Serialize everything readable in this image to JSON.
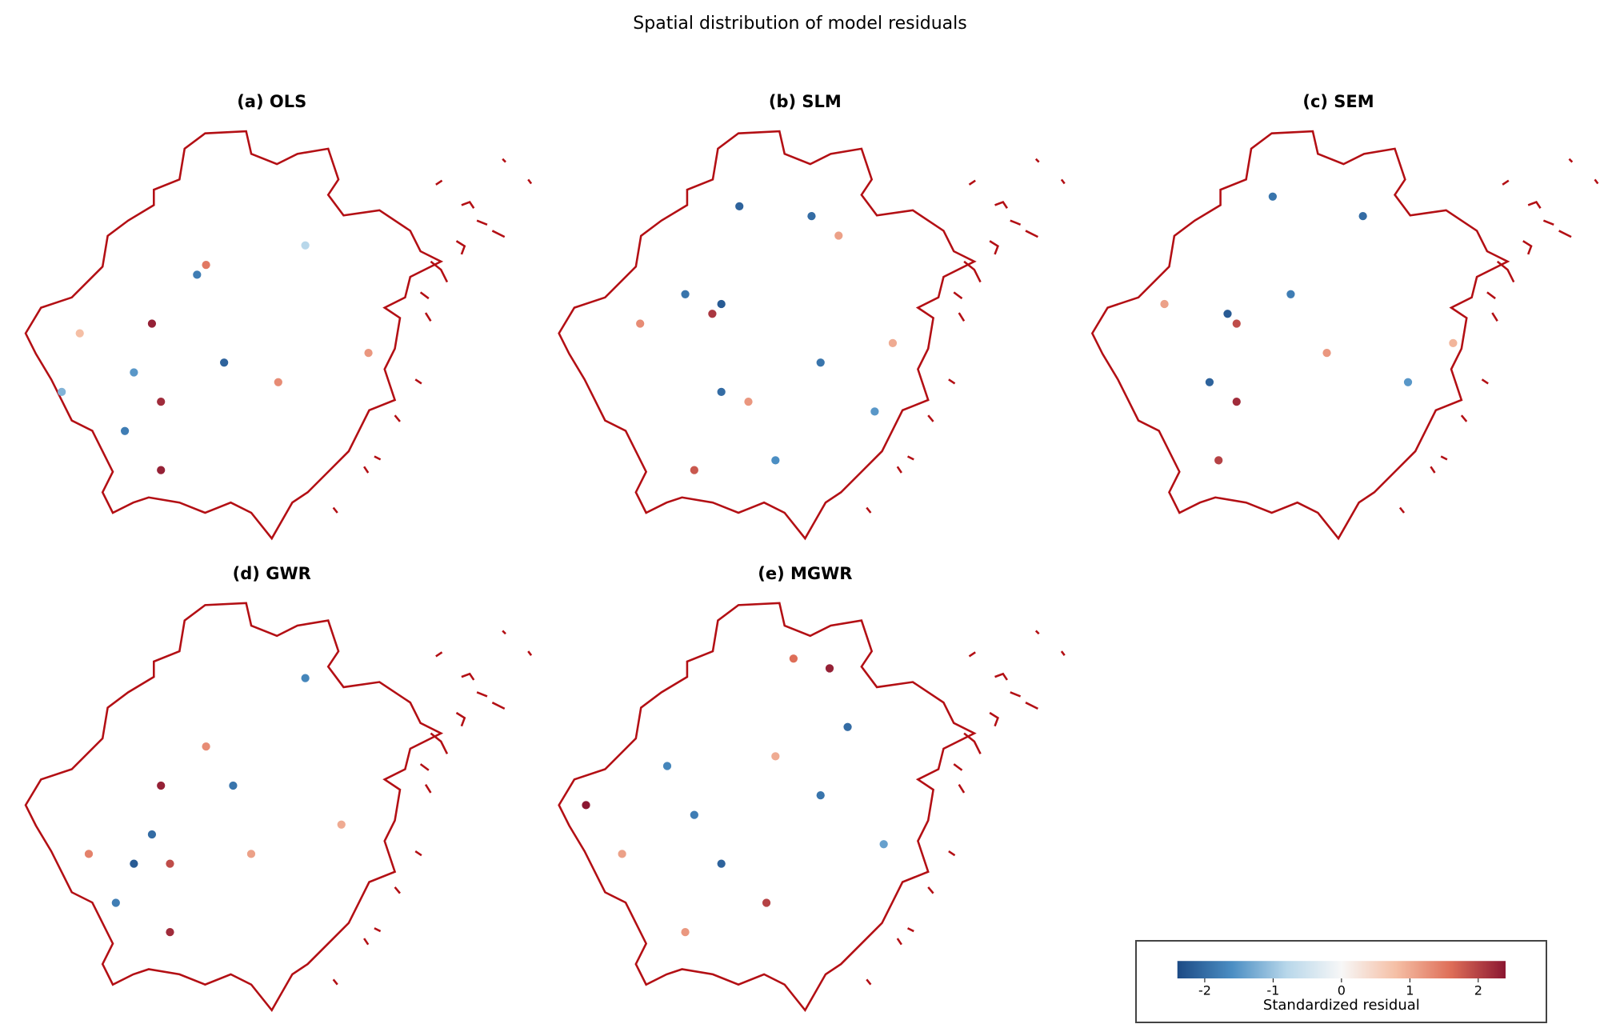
{
  "chart_data": {
    "type": "map",
    "title": "Spatial distribution of model residuals",
    "lon_range": [
      118,
      123.4
    ],
    "lat_range": [
      27,
      31.2
    ],
    "clim": [
      -2.4,
      2.4
    ],
    "colormap": [
      "#1c4a85",
      "#4b8ec3",
      "#b8d7ea",
      "#f7f7f7",
      "#f5bfa5",
      "#de6e58",
      "#8b1631"
    ],
    "boundary_color": "#b30f14",
    "colorbar_label": "Standardized residual",
    "colorbar_ticks": [
      {
        "value": -2,
        "label": "-2"
      },
      {
        "value": -1,
        "label": "-1"
      },
      0,
      1,
      2
    ],
    "panels": [
      {
        "title": "(a) OLS",
        "points": [
          [
            119.4,
            29.2,
            2.3
          ],
          [
            119.5,
            28.4,
            2.2
          ],
          [
            119.5,
            27.7,
            2.3
          ],
          [
            120.0,
            29.8,
            1.5
          ],
          [
            120.8,
            28.6,
            1.3
          ],
          [
            121.8,
            28.9,
            1.2
          ],
          [
            119.1,
            28.1,
            -1.8
          ],
          [
            119.2,
            28.7,
            -1.5
          ],
          [
            118.4,
            28.5,
            -1.2
          ],
          [
            120.2,
            28.8,
            -2.1
          ],
          [
            119.9,
            29.7,
            -1.8
          ],
          [
            121.1,
            30.0,
            -0.8
          ],
          [
            118.6,
            29.1,
            0.8
          ]
        ]
      },
      {
        "title": "(b) SLM",
        "points": [
          [
            119.8,
            29.4,
            -2.2
          ],
          [
            119.7,
            29.3,
            2.1
          ],
          [
            119.5,
            27.7,
            1.8
          ],
          [
            119.8,
            28.5,
            -2.0
          ],
          [
            120.1,
            28.4,
            1.2
          ],
          [
            120.9,
            28.8,
            -1.9
          ],
          [
            121.5,
            28.3,
            -1.5
          ],
          [
            120.0,
            30.4,
            -2.1
          ],
          [
            120.8,
            30.3,
            -2.0
          ],
          [
            119.4,
            29.5,
            -1.9
          ],
          [
            118.9,
            29.2,
            1.3
          ],
          [
            121.7,
            29.0,
            1.0
          ],
          [
            120.4,
            27.8,
            -1.6
          ],
          [
            121.1,
            30.1,
            1.1
          ]
        ]
      },
      {
        "title": "(c) SEM",
        "points": [
          [
            119.5,
            29.3,
            -2.2
          ],
          [
            119.6,
            29.2,
            1.9
          ],
          [
            119.6,
            28.4,
            2.2
          ],
          [
            119.4,
            27.8,
            2.0
          ],
          [
            119.3,
            28.6,
            -2.1
          ],
          [
            120.2,
            29.5,
            -1.8
          ],
          [
            121.0,
            30.3,
            -2.0
          ],
          [
            120.6,
            28.9,
            1.2
          ],
          [
            121.5,
            28.6,
            -1.5
          ],
          [
            118.8,
            29.4,
            1.1
          ],
          [
            122.0,
            29.0,
            0.9
          ],
          [
            120.0,
            30.5,
            -1.9
          ]
        ]
      },
      {
        "title": "(d) GWR",
        "points": [
          [
            119.5,
            29.3,
            2.3
          ],
          [
            119.6,
            28.5,
            1.9
          ],
          [
            119.6,
            27.8,
            2.2
          ],
          [
            119.2,
            28.5,
            -2.2
          ],
          [
            119.4,
            28.8,
            -2.0
          ],
          [
            120.0,
            29.7,
            1.3
          ],
          [
            121.1,
            30.4,
            -1.7
          ],
          [
            120.5,
            28.6,
            1.1
          ],
          [
            118.7,
            28.6,
            1.4
          ],
          [
            119.0,
            28.1,
            -1.8
          ],
          [
            121.5,
            28.9,
            1.0
          ],
          [
            120.3,
            29.3,
            -1.9
          ]
        ]
      },
      {
        "title": "(e) MGWR",
        "points": [
          [
            118.3,
            29.1,
            2.4
          ],
          [
            119.5,
            29.0,
            -1.8
          ],
          [
            121.0,
            30.5,
            2.3
          ],
          [
            120.6,
            30.6,
            1.6
          ],
          [
            119.8,
            28.5,
            -2.1
          ],
          [
            120.3,
            28.1,
            2.0
          ],
          [
            119.4,
            27.8,
            1.2
          ],
          [
            118.7,
            28.6,
            1.1
          ],
          [
            120.9,
            29.2,
            -1.9
          ],
          [
            121.6,
            28.7,
            -1.4
          ],
          [
            119.2,
            29.5,
            -1.7
          ],
          [
            120.4,
            29.6,
            1.0
          ],
          [
            121.2,
            29.9,
            -2.0
          ]
        ]
      }
    ]
  }
}
